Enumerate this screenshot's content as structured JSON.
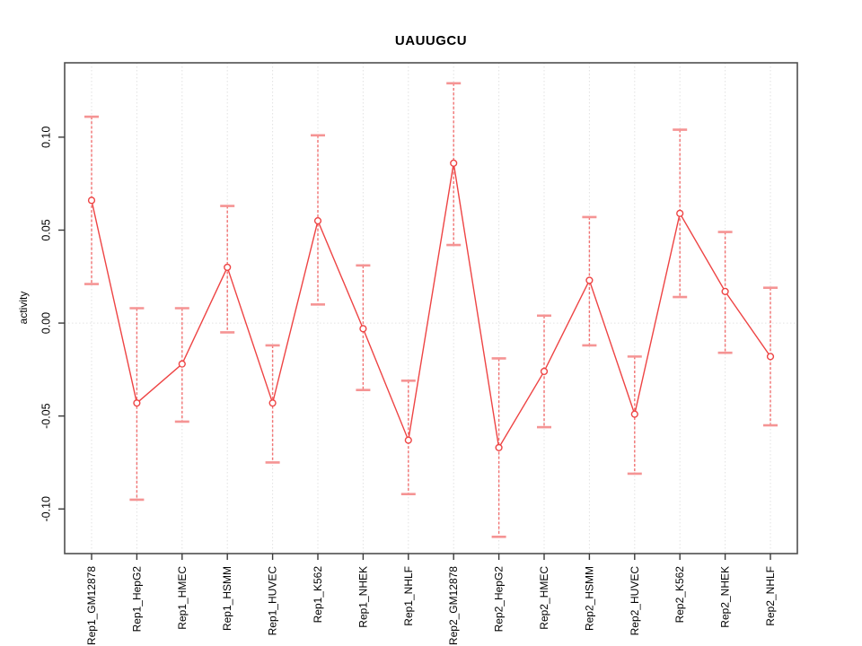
{
  "chart_data": {
    "type": "line",
    "title": "UAUUGCU",
    "xlabel": "",
    "ylabel": "activity",
    "legend_position": "none",
    "marker": "open-circle",
    "categories": [
      "Rep1_GM12878",
      "Rep1_HepG2",
      "Rep1_HMEC",
      "Rep1_HSMM",
      "Rep1_HUVEC",
      "Rep1_K562",
      "Rep1_NHEK",
      "Rep1_NHLF",
      "Rep2_GM12878",
      "Rep2_HepG2",
      "Rep2_HMEC",
      "Rep2_HSMM",
      "Rep2_HUVEC",
      "Rep2_K562",
      "Rep2_NHEK",
      "Rep2_NHLF"
    ],
    "series": [
      {
        "name": "activity",
        "values": [
          0.066,
          -0.043,
          -0.022,
          0.03,
          -0.043,
          0.055,
          -0.003,
          -0.063,
          0.086,
          -0.067,
          -0.026,
          0.023,
          -0.049,
          0.059,
          0.017,
          -0.018
        ],
        "err_low": [
          0.021,
          -0.095,
          -0.053,
          -0.005,
          -0.075,
          0.01,
          -0.036,
          -0.092,
          0.042,
          -0.115,
          -0.056,
          -0.012,
          -0.081,
          0.014,
          -0.016,
          -0.055
        ],
        "err_high": [
          0.111,
          0.008,
          0.008,
          0.063,
          -0.012,
          0.101,
          0.031,
          -0.031,
          0.129,
          -0.019,
          0.004,
          0.057,
          -0.018,
          0.104,
          0.049,
          0.019
        ]
      }
    ],
    "ytick_labels": [
      "-0.10",
      "-0.05",
      "0.00",
      "0.05",
      "0.10"
    ],
    "ytick_values": [
      -0.1,
      -0.05,
      0.0,
      0.05,
      0.1
    ],
    "ylim": [
      -0.124,
      0.14
    ],
    "grid": {
      "vertical": "dotted line at each category",
      "horizontal": "dotted line at y=0"
    },
    "colors": {
      "series_line": "#ee4444",
      "error_whisker": "#f17272",
      "error_cap": "#f59494",
      "gridline": "#e2e2e2",
      "plot_border": "#4f4f4f",
      "tick": "#3a3a3a",
      "text": "#000000",
      "background": "#ffffff"
    }
  }
}
